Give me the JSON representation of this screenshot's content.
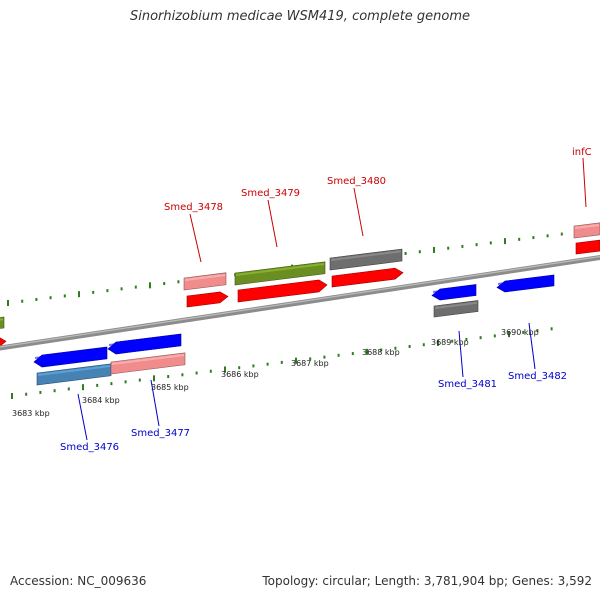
{
  "title": "Sinorhizobium medicae WSM419, complete genome",
  "footer": {
    "accession": "Accession: NC_009636",
    "summary": "Topology: circular; Length: 3,781,904 bp; Genes: 3,592"
  },
  "colors": {
    "backbone": "#8c8c8c",
    "tick": "#2e7d20",
    "forward_label": "#cc0000",
    "reverse_label": "#0000cc",
    "red": "#ff0000",
    "pink": "#f08c8c",
    "olive": "#6b8e23",
    "gray": "#6e6e6e",
    "blue": "#0000ff",
    "steelblue": "#4682b4"
  },
  "scale": {
    "ticks": [
      "3683 kbp",
      "3684 kbp",
      "3685 kbp",
      "3686 kbp",
      "3687 kbp",
      "3688 kbp",
      "3689 kbp",
      "3690 kbp"
    ]
  },
  "gene_labels": [
    {
      "text": "Smed_3478",
      "strand": "forward"
    },
    {
      "text": "Smed_3479",
      "strand": "forward"
    },
    {
      "text": "Smed_3480",
      "strand": "forward"
    },
    {
      "text": "infC",
      "strand": "forward"
    },
    {
      "text": "Smed_3476",
      "strand": "reverse"
    },
    {
      "text": "Smed_3477",
      "strand": "reverse"
    },
    {
      "text": "Smed_3481",
      "strand": "reverse"
    },
    {
      "text": "Smed_3482",
      "strand": "reverse"
    }
  ],
  "features": [
    {
      "name": "fwd-red-stub-left",
      "color": "red",
      "strand": "forward"
    },
    {
      "name": "fwd-olive-stub-left",
      "color": "olive",
      "strand": "forward"
    },
    {
      "name": "fwd-pink-3478",
      "color": "pink",
      "strand": "forward"
    },
    {
      "name": "fwd-red-3478",
      "color": "red",
      "strand": "forward"
    },
    {
      "name": "fwd-olive-3479",
      "color": "olive",
      "strand": "forward"
    },
    {
      "name": "fwd-red-3479",
      "color": "red",
      "strand": "forward"
    },
    {
      "name": "fwd-gray-3480",
      "color": "gray",
      "strand": "forward"
    },
    {
      "name": "fwd-red-3480",
      "color": "red",
      "strand": "forward"
    },
    {
      "name": "fwd-pink-infc",
      "color": "pink",
      "strand": "forward"
    },
    {
      "name": "fwd-red-infc",
      "color": "red",
      "strand": "forward"
    },
    {
      "name": "rev-blue-3476",
      "color": "blue",
      "strand": "reverse"
    },
    {
      "name": "rev-steelblue-3476",
      "color": "steelblue",
      "strand": "reverse"
    },
    {
      "name": "rev-blue-3477",
      "color": "blue",
      "strand": "reverse"
    },
    {
      "name": "rev-pink-3477",
      "color": "pink",
      "strand": "reverse"
    },
    {
      "name": "rev-blue-3481",
      "color": "blue",
      "strand": "reverse"
    },
    {
      "name": "rev-gray-3481",
      "color": "gray",
      "strand": "reverse"
    },
    {
      "name": "rev-blue-3482",
      "color": "blue",
      "strand": "reverse"
    }
  ]
}
